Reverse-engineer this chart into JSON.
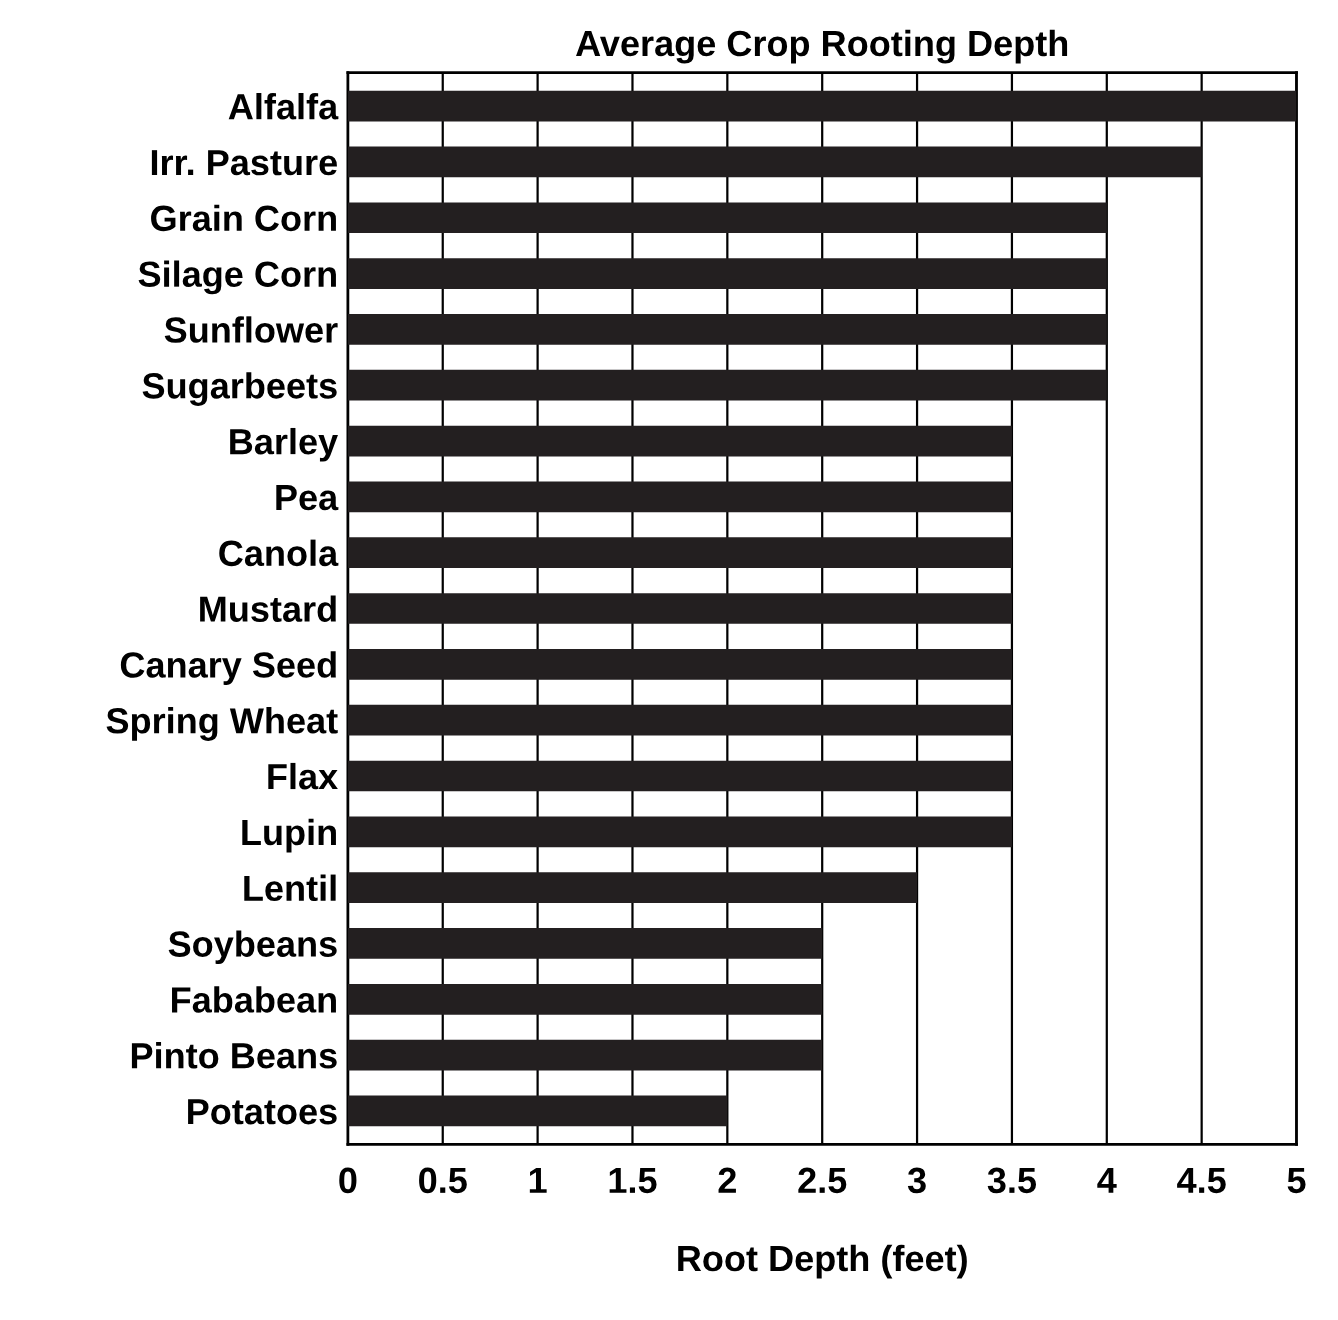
{
  "chart_data": {
    "type": "bar",
    "orientation": "horizontal",
    "title": "Average Crop Rooting Depth",
    "xlabel": "Root Depth (feet)",
    "categories": [
      "Alfalfa",
      "Irr. Pasture",
      "Grain Corn",
      "Silage Corn",
      "Sunflower",
      "Sugarbeets",
      "Barley",
      "Pea",
      "Canola",
      "Mustard",
      "Canary Seed",
      "Spring Wheat",
      "Flax",
      "Lupin",
      "Lentil",
      "Soybeans",
      "Fababean",
      "Pinto Beans",
      "Potatoes"
    ],
    "values": [
      5,
      4.5,
      4,
      4,
      4,
      4,
      3.5,
      3.5,
      3.5,
      3.5,
      3.5,
      3.5,
      3.5,
      3.5,
      3,
      2.5,
      2.5,
      2.5,
      2
    ],
    "color": "#231f20",
    "xlim": [
      0,
      5
    ],
    "xticks": [
      0,
      0.5,
      1,
      1.5,
      2,
      2.5,
      3,
      3.5,
      4,
      4.5,
      5
    ],
    "grid": "x"
  }
}
